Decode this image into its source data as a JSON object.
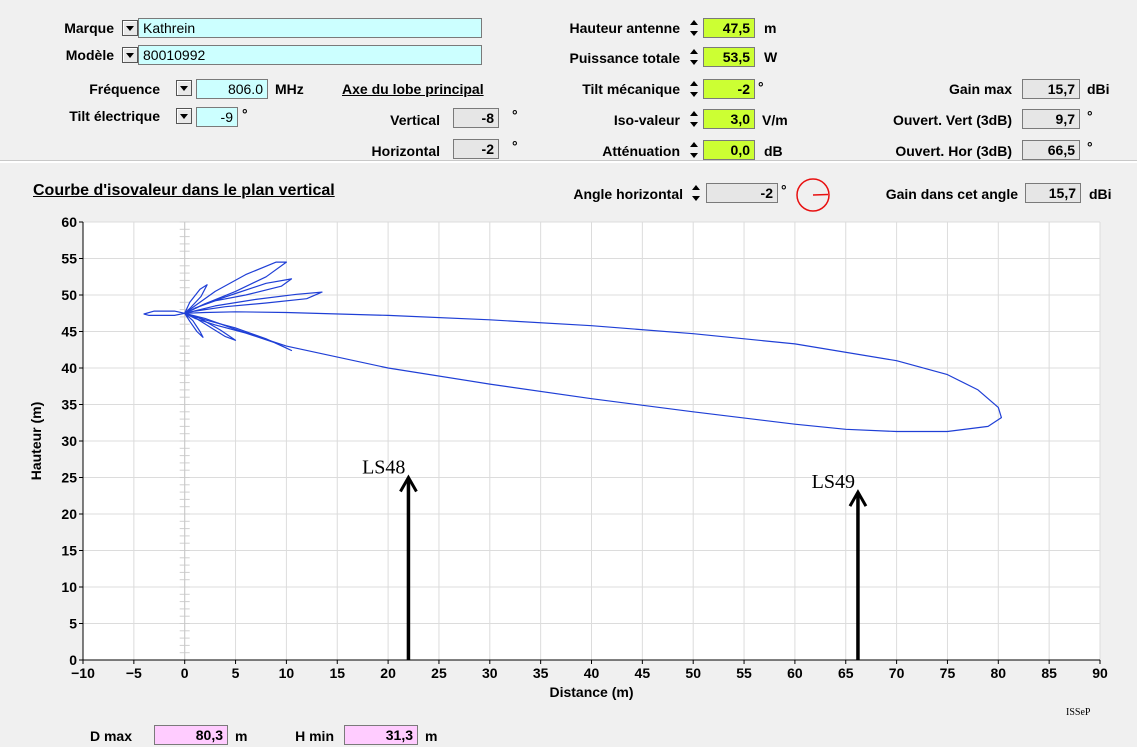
{
  "form": {
    "marque_label": "Marque",
    "marque_value": "Kathrein",
    "modele_label": "Modèle",
    "modele_value": "80010992",
    "frequence_label": "Fréquence",
    "frequence_value": "806.0",
    "frequence_unit": "MHz",
    "tilt_elec_label": "Tilt électrique",
    "tilt_elec_value": "-9",
    "tilt_elec_unit": "°",
    "axe_label": "Axe du lobe principal",
    "vertical_label": "Vertical",
    "vertical_value": "-8",
    "vertical_unit": "°",
    "horizontal_label": "Horizontal",
    "horizontal_value": "-2",
    "horizontal_unit": "°",
    "hauteur_label": "Hauteur antenne",
    "hauteur_value": "47,5",
    "hauteur_unit": "m",
    "puissance_label": "Puissance totale",
    "puissance_value": "53,5",
    "puissance_unit": "W",
    "tilt_meca_label": "Tilt mécanique",
    "tilt_meca_value": "-2",
    "tilt_meca_unit": "°",
    "iso_label": "Iso-valeur",
    "iso_value": "3,0",
    "iso_unit": "V/m",
    "attenuation_label": "Atténuation",
    "attenuation_value": "0,0",
    "attenuation_unit": "dB",
    "gain_max_label": "Gain max",
    "gain_max_value": "15,7",
    "gain_max_unit": "dBi",
    "ouvert_vert_label": "Ouvert. Vert (3dB)",
    "ouvert_vert_value": "9,7",
    "ouvert_vert_unit": "°",
    "ouvert_hor_label": "Ouvert. Hor (3dB)",
    "ouvert_hor_value": "66,5",
    "ouvert_hor_unit": "°"
  },
  "graph_header": {
    "title": "Courbe d'isovaleur dans le plan vertical",
    "angle_label": "Angle horizontal",
    "angle_value": "-2",
    "angle_unit": "°",
    "gain_angle_label": "Gain dans cet angle",
    "gain_angle_value": "15,7",
    "gain_angle_unit": "dBi"
  },
  "footer": {
    "dmax_label": "D max",
    "dmax_value": "80,3",
    "dmax_unit": "m",
    "hmin_label": "H min",
    "hmin_value": "31,3",
    "hmin_unit": "m",
    "brand": "ISSeP"
  },
  "colors": {
    "curve": "#1f3fd6",
    "angle_indicator": "#e81010",
    "yellow_field": "#ccff33",
    "cyan_field": "#ccffff",
    "pink_field": "#ffccff"
  },
  "chart_data": {
    "type": "line",
    "xlabel": "Distance (m)",
    "ylabel": "Hauteur (m)",
    "xlim": [
      -10,
      90
    ],
    "ylim": [
      0,
      60
    ],
    "xticks": [
      -10,
      -5,
      0,
      5,
      10,
      15,
      20,
      25,
      30,
      35,
      40,
      45,
      50,
      55,
      60,
      65,
      70,
      75,
      80,
      85,
      90
    ],
    "yticks": [
      0,
      5,
      10,
      15,
      20,
      25,
      30,
      35,
      40,
      45,
      50,
      55,
      60
    ],
    "grid": true,
    "series": [
      {
        "x": [
          0,
          2,
          5,
          10,
          20,
          30,
          40,
          50,
          60,
          70,
          75,
          78,
          80,
          80.3,
          79,
          75,
          70,
          65,
          60,
          50,
          40,
          30,
          20,
          10,
          5,
          2,
          0
        ],
        "y": [
          47.5,
          47.6,
          47.7,
          47.6,
          47.2,
          46.6,
          45.8,
          44.7,
          43.3,
          41.0,
          39.1,
          37.0,
          34.6,
          33.2,
          32.0,
          31.3,
          31.3,
          31.6,
          32.3,
          34.0,
          35.8,
          37.8,
          40.0,
          43.0,
          45.3,
          46.8,
          47.5
        ]
      },
      {
        "x": [
          0,
          1,
          3,
          6,
          9,
          10,
          8,
          5,
          2,
          0
        ],
        "y": [
          47.5,
          48.5,
          50.5,
          52.8,
          54.5,
          54.5,
          52.5,
          50.5,
          48.8,
          47.5
        ]
      },
      {
        "x": [
          0,
          2,
          5,
          8,
          10.5,
          9.5,
          6,
          3,
          1,
          0
        ],
        "y": [
          47.5,
          48.8,
          50.2,
          51.6,
          52.2,
          51.2,
          50.0,
          49.2,
          48.2,
          47.5
        ]
      },
      {
        "x": [
          0,
          3,
          7,
          11,
          13.5,
          12,
          8,
          4,
          1,
          0
        ],
        "y": [
          47.5,
          48.5,
          49.4,
          50.1,
          50.4,
          49.5,
          48.9,
          48.4,
          47.8,
          47.5
        ]
      },
      {
        "x": [
          0,
          0.5,
          1.5,
          2.2,
          1.6,
          0.6,
          0
        ],
        "y": [
          47.5,
          49.0,
          50.8,
          51.4,
          49.8,
          48.3,
          47.5
        ]
      },
      {
        "x": [
          0,
          2,
          5,
          8,
          10.5,
          9,
          6,
          3,
          1,
          0
        ],
        "y": [
          47.5,
          46.6,
          45.5,
          44.0,
          42.4,
          43.4,
          44.8,
          45.9,
          46.8,
          47.5
        ]
      },
      {
        "x": [
          0,
          1.5,
          3.5,
          5,
          4,
          2.5,
          1,
          0
        ],
        "y": [
          47.5,
          46.8,
          45.2,
          43.8,
          44.3,
          45.6,
          46.9,
          47.5
        ]
      },
      {
        "x": [
          0,
          0.8,
          1.5,
          1.8,
          1.2,
          0.5,
          0
        ],
        "y": [
          47.5,
          46.5,
          45.0,
          44.2,
          45.0,
          46.4,
          47.5
        ]
      },
      {
        "x": [
          0,
          -1,
          -3,
          -4,
          -3.5,
          -1,
          0
        ],
        "y": [
          47.5,
          47.8,
          47.8,
          47.4,
          47.2,
          47.2,
          47.5
        ]
      }
    ],
    "annotations": [
      {
        "text": "LS48",
        "x": 22
      },
      {
        "text": "LS49",
        "x": 66.2
      }
    ]
  }
}
